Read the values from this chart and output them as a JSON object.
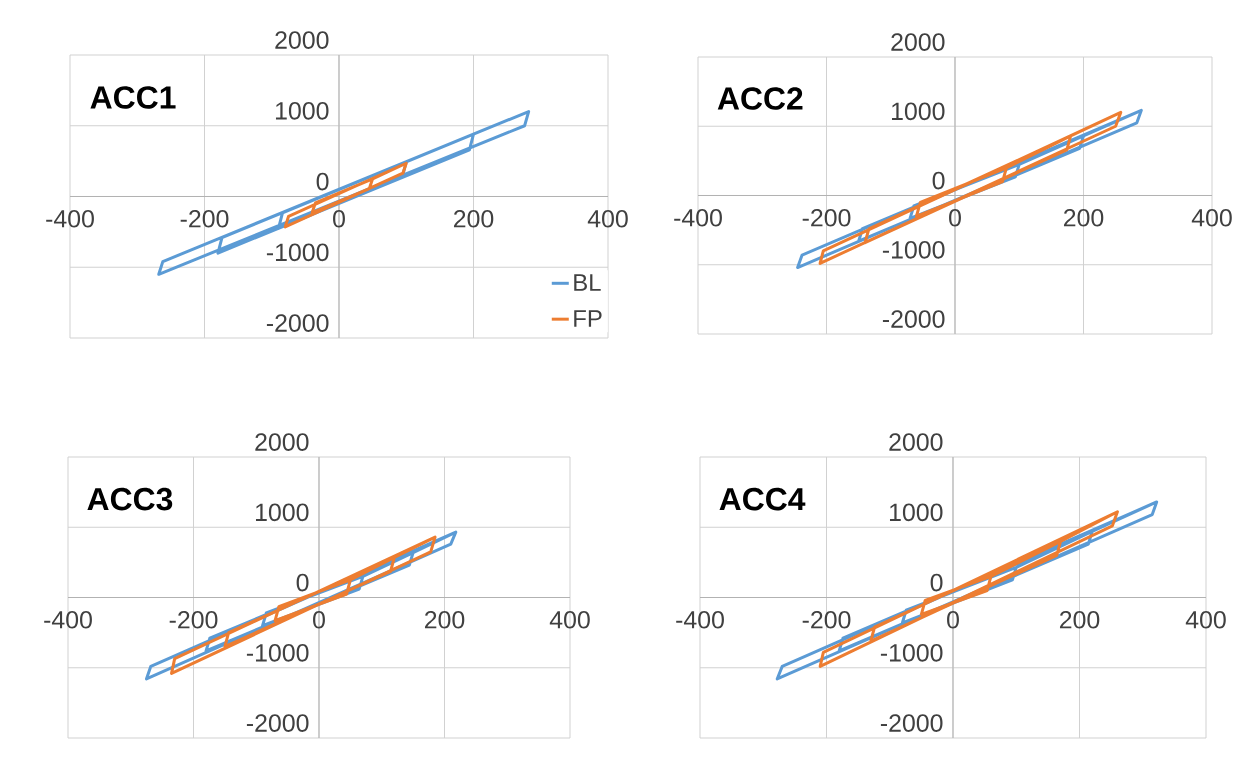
{
  "chart_data": [
    {
      "type": "line",
      "title": "ACC1",
      "xlim": [
        -400,
        400
      ],
      "ylim": [
        -2000,
        2000
      ],
      "xticks": [
        -400,
        -200,
        0,
        200,
        400
      ],
      "yticks": [
        -2000,
        -1000,
        0,
        1000,
        2000
      ],
      "grid": true,
      "legend": "bottom right",
      "series": [
        {
          "name": "BL",
          "color": "#5b9bd5",
          "x": [
            100,
            94,
            -90,
            -84,
            100,
            200,
            194,
            -180,
            -174,
            200,
            282,
            276,
            -268,
            -262,
            282
          ],
          "values": [
            490,
            270,
            -450,
            -230,
            490,
            880,
            660,
            -800,
            -580,
            880,
            1200,
            1000,
            -1100,
            -920,
            1200
          ]
        },
        {
          "name": "FP",
          "color": "#ed7d31",
          "x": [
            50,
            45,
            -40,
            -35,
            50,
            100,
            95,
            -80,
            -75,
            100
          ],
          "values": [
            250,
            110,
            -230,
            -90,
            250,
            470,
            330,
            -430,
            -280,
            470
          ]
        }
      ]
    },
    {
      "type": "line",
      "title": "ACC2",
      "xlim": [
        -400,
        400
      ],
      "ylim": [
        -2000,
        2000
      ],
      "xticks": [
        -400,
        -200,
        0,
        200,
        400
      ],
      "yticks": [
        -2000,
        -1000,
        0,
        1000,
        2000
      ],
      "grid": true,
      "series": [
        {
          "color": "#5b9bd5",
          "x": [
            100,
            94,
            -70,
            -64,
            100,
            200,
            194,
            -150,
            -144,
            200,
            290,
            283,
            -245,
            -238,
            290
          ],
          "values": [
            450,
            270,
            -330,
            -150,
            450,
            860,
            680,
            -660,
            -480,
            860,
            1230,
            1050,
            -1040,
            -860,
            1230
          ]
        },
        {
          "color": "#ed7d31",
          "x": [
            80,
            74,
            -60,
            -54,
            80,
            180,
            174,
            -140,
            -134,
            180,
            258,
            250,
            -210,
            -205,
            258
          ],
          "values": [
            400,
            200,
            -300,
            -100,
            400,
            860,
            660,
            -680,
            -480,
            860,
            1200,
            1000,
            -980,
            -800,
            1200
          ]
        }
      ]
    },
    {
      "type": "line",
      "title": "ACC3",
      "xlim": [
        -400,
        400
      ],
      "ylim": [
        -2000,
        2000
      ],
      "xticks": [
        -400,
        -200,
        0,
        200,
        400
      ],
      "yticks": [
        -2000,
        -1000,
        0,
        1000,
        2000
      ],
      "grid": true,
      "series": [
        {
          "color": "#5b9bd5",
          "x": [
            70,
            64,
            -90,
            -84,
            70,
            150,
            144,
            -180,
            -174,
            150,
            218,
            210,
            -275,
            -268,
            218
          ],
          "values": [
            300,
            120,
            -400,
            -220,
            300,
            640,
            460,
            -760,
            -580,
            640,
            930,
            760,
            -1160,
            -980,
            930
          ]
        },
        {
          "color": "#ed7d31",
          "x": [
            50,
            44,
            -70,
            -64,
            50,
            120,
            114,
            -150,
            -144,
            120,
            185,
            178,
            -235,
            -230,
            185
          ],
          "values": [
            250,
            50,
            -330,
            -130,
            250,
            570,
            370,
            -700,
            -500,
            570,
            860,
            650,
            -1080,
            -870,
            860
          ]
        }
      ]
    },
    {
      "type": "line",
      "title": "ACC4",
      "xlim": [
        -400,
        400
      ],
      "ylim": [
        -2000,
        2000
      ],
      "xticks": [
        -400,
        -200,
        0,
        200,
        400
      ],
      "yticks": [
        -2000,
        -1000,
        0,
        1000,
        2000
      ],
      "grid": true,
      "series": [
        {
          "color": "#5b9bd5",
          "x": [
            100,
            94,
            -80,
            -74,
            100,
            220,
            214,
            -180,
            -174,
            220,
            322,
            315,
            -278,
            -270,
            322
          ],
          "values": [
            430,
            250,
            -360,
            -180,
            430,
            940,
            760,
            -760,
            -580,
            940,
            1360,
            1180,
            -1160,
            -980,
            1360
          ]
        },
        {
          "color": "#ed7d31",
          "x": [
            60,
            54,
            -50,
            -44,
            60,
            170,
            164,
            -130,
            -124,
            170,
            260,
            252,
            -210,
            -205,
            260
          ],
          "values": [
            300,
            100,
            -240,
            -40,
            300,
            800,
            600,
            -620,
            -420,
            800,
            1220,
            1020,
            -980,
            -780,
            1220
          ]
        }
      ]
    }
  ]
}
